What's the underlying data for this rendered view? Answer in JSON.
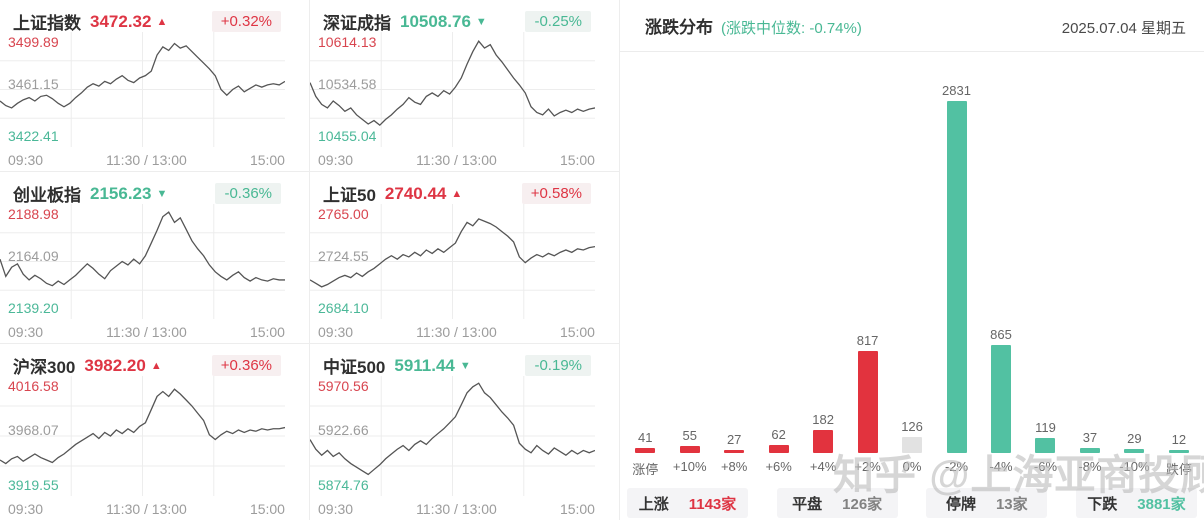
{
  "colors": {
    "up": "#de3544",
    "down": "#49b894",
    "bar_up": "#e2333e",
    "bar_down": "#52c1a2",
    "bar_neutral": "#e2e2e2",
    "grid": "#ededed",
    "line": "#555555"
  },
  "indices": [
    {
      "name": "上证指数",
      "value": "3472.32",
      "arrow": "▲",
      "direction": "up",
      "change": "+0.32%"
    },
    {
      "name": "深证成指",
      "value": "10508.76",
      "arrow": "▼",
      "direction": "down",
      "change": "-0.25%"
    },
    {
      "name": "创业板指",
      "value": "2156.23",
      "arrow": "▼",
      "direction": "down",
      "change": "-0.36%"
    },
    {
      "name": "上证50",
      "value": "2740.44",
      "arrow": "▲",
      "direction": "up",
      "change": "+0.58%"
    },
    {
      "name": "沪深300",
      "value": "3982.20",
      "arrow": "▲",
      "direction": "up",
      "change": "+0.36%"
    },
    {
      "name": "中证500",
      "value": "5911.44",
      "arrow": "▼",
      "direction": "down",
      "change": "-0.19%"
    }
  ],
  "chart_data": [
    {
      "type": "bar",
      "title": "涨跌分布",
      "subtitle": "(涨跌中位数: -0.74%)",
      "date": "2025.07.04 星期五",
      "categories": [
        "涨停",
        "+10%",
        "+8%",
        "+6%",
        "+4%",
        "+2%",
        "0%",
        "-2%",
        "-4%",
        "-6%",
        "-8%",
        "-10%",
        "跌停"
      ],
      "values": [
        41,
        55,
        27,
        62,
        182,
        817,
        126,
        2831,
        865,
        119,
        37,
        29,
        12
      ],
      "bar_colors": [
        "up",
        "up",
        "up",
        "up",
        "up",
        "up",
        "neutral",
        "down",
        "down",
        "down",
        "down",
        "down",
        "down"
      ],
      "ylim": [
        0,
        2831
      ],
      "grid": false,
      "legend": "none",
      "value_labels": true
    },
    {
      "type": "line",
      "title": "上证指数",
      "ylabels": [
        "3499.89",
        "3461.15",
        "3422.41"
      ],
      "xticks": [
        "09:30",
        "11:30 / 13:00",
        "15:00"
      ],
      "points_norm": [
        0.4,
        0.36,
        0.34,
        0.38,
        0.41,
        0.43,
        0.4,
        0.44,
        0.45,
        0.42,
        0.38,
        0.35,
        0.38,
        0.43,
        0.47,
        0.52,
        0.55,
        0.53,
        0.57,
        0.55,
        0.59,
        0.62,
        0.58,
        0.56,
        0.6,
        0.62,
        0.66,
        0.8,
        0.87,
        0.84,
        0.9,
        0.86,
        0.88,
        0.83,
        0.78,
        0.73,
        0.68,
        0.62,
        0.5,
        0.45,
        0.5,
        0.53,
        0.48,
        0.51,
        0.54,
        0.52,
        0.54,
        0.55,
        0.54,
        0.57
      ]
    },
    {
      "type": "line",
      "title": "深证成指",
      "ylabels": [
        "10614.13",
        "10534.58",
        "10455.04"
      ],
      "xticks": [
        "09:30",
        "11:30 / 13:00",
        "15:00"
      ],
      "points_norm": [
        0.56,
        0.44,
        0.37,
        0.34,
        0.4,
        0.36,
        0.31,
        0.34,
        0.28,
        0.24,
        0.2,
        0.23,
        0.19,
        0.24,
        0.28,
        0.33,
        0.37,
        0.43,
        0.39,
        0.37,
        0.44,
        0.47,
        0.44,
        0.49,
        0.46,
        0.52,
        0.6,
        0.72,
        0.83,
        0.92,
        0.86,
        0.89,
        0.8,
        0.74,
        0.67,
        0.6,
        0.54,
        0.47,
        0.35,
        0.3,
        0.28,
        0.33,
        0.27,
        0.3,
        0.32,
        0.3,
        0.33,
        0.31,
        0.33,
        0.34
      ]
    },
    {
      "type": "line",
      "title": "创业板指",
      "ylabels": [
        "2188.98",
        "2164.09",
        "2139.20"
      ],
      "xticks": [
        "09:30",
        "11:30 / 13:00",
        "15:00"
      ],
      "points_norm": [
        0.52,
        0.37,
        0.45,
        0.48,
        0.39,
        0.34,
        0.38,
        0.35,
        0.31,
        0.29,
        0.33,
        0.3,
        0.34,
        0.38,
        0.43,
        0.48,
        0.44,
        0.39,
        0.35,
        0.42,
        0.46,
        0.5,
        0.47,
        0.52,
        0.48,
        0.55,
        0.66,
        0.77,
        0.89,
        0.93,
        0.84,
        0.88,
        0.78,
        0.68,
        0.61,
        0.55,
        0.47,
        0.41,
        0.37,
        0.34,
        0.38,
        0.41,
        0.36,
        0.33,
        0.36,
        0.34,
        0.33,
        0.35,
        0.34,
        0.34
      ]
    },
    {
      "type": "line",
      "title": "上证50",
      "ylabels": [
        "2765.00",
        "2724.55",
        "2684.10"
      ],
      "xticks": [
        "09:30",
        "11:30 / 13:00",
        "15:00"
      ],
      "points_norm": [
        0.34,
        0.31,
        0.28,
        0.3,
        0.33,
        0.36,
        0.38,
        0.36,
        0.4,
        0.37,
        0.41,
        0.44,
        0.48,
        0.52,
        0.55,
        0.52,
        0.56,
        0.54,
        0.58,
        0.55,
        0.6,
        0.57,
        0.61,
        0.58,
        0.62,
        0.66,
        0.76,
        0.84,
        0.81,
        0.87,
        0.85,
        0.83,
        0.8,
        0.76,
        0.72,
        0.67,
        0.54,
        0.49,
        0.53,
        0.56,
        0.54,
        0.57,
        0.55,
        0.58,
        0.6,
        0.58,
        0.61,
        0.6,
        0.62,
        0.63
      ]
    },
    {
      "type": "line",
      "title": "沪深300",
      "ylabels": [
        "4016.58",
        "3968.07",
        "3919.55"
      ],
      "xticks": [
        "09:30",
        "11:30 / 13:00",
        "15:00"
      ],
      "points_norm": [
        0.3,
        0.27,
        0.31,
        0.33,
        0.29,
        0.32,
        0.35,
        0.32,
        0.3,
        0.28,
        0.32,
        0.35,
        0.39,
        0.43,
        0.46,
        0.49,
        0.52,
        0.48,
        0.53,
        0.5,
        0.55,
        0.52,
        0.56,
        0.53,
        0.58,
        0.61,
        0.72,
        0.83,
        0.87,
        0.83,
        0.89,
        0.85,
        0.8,
        0.75,
        0.69,
        0.63,
        0.51,
        0.47,
        0.51,
        0.54,
        0.52,
        0.55,
        0.53,
        0.55,
        0.54,
        0.56,
        0.55,
        0.56,
        0.56,
        0.57
      ]
    },
    {
      "type": "line",
      "title": "中证500",
      "ylabels": [
        "5970.56",
        "5922.66",
        "5874.76"
      ],
      "xticks": [
        "09:30",
        "11:30 / 13:00",
        "15:00"
      ],
      "points_norm": [
        0.47,
        0.39,
        0.34,
        0.38,
        0.33,
        0.36,
        0.31,
        0.27,
        0.24,
        0.21,
        0.18,
        0.22,
        0.26,
        0.31,
        0.35,
        0.39,
        0.42,
        0.38,
        0.43,
        0.46,
        0.43,
        0.48,
        0.52,
        0.56,
        0.61,
        0.66,
        0.76,
        0.86,
        0.91,
        0.94,
        0.86,
        0.82,
        0.76,
        0.7,
        0.65,
        0.59,
        0.44,
        0.39,
        0.36,
        0.42,
        0.38,
        0.35,
        0.4,
        0.37,
        0.34,
        0.38,
        0.35,
        0.38,
        0.36,
        0.38
      ]
    }
  ],
  "distribution_header": {
    "title": "涨跌分布",
    "subtitle": "(涨跌中位数: -0.74%)",
    "date": "2025.07.04 星期五"
  },
  "summary": {
    "items": [
      {
        "label": "上涨",
        "count": "1143家",
        "tone": "up"
      },
      {
        "label": "平盘",
        "count": "126家",
        "tone": "neutral"
      },
      {
        "label": "停牌",
        "count": "13家",
        "tone": "neutral"
      },
      {
        "label": "下跌",
        "count": "3881家",
        "tone": "down"
      }
    ]
  },
  "watermark": "知乎 @上海亚商投顾"
}
